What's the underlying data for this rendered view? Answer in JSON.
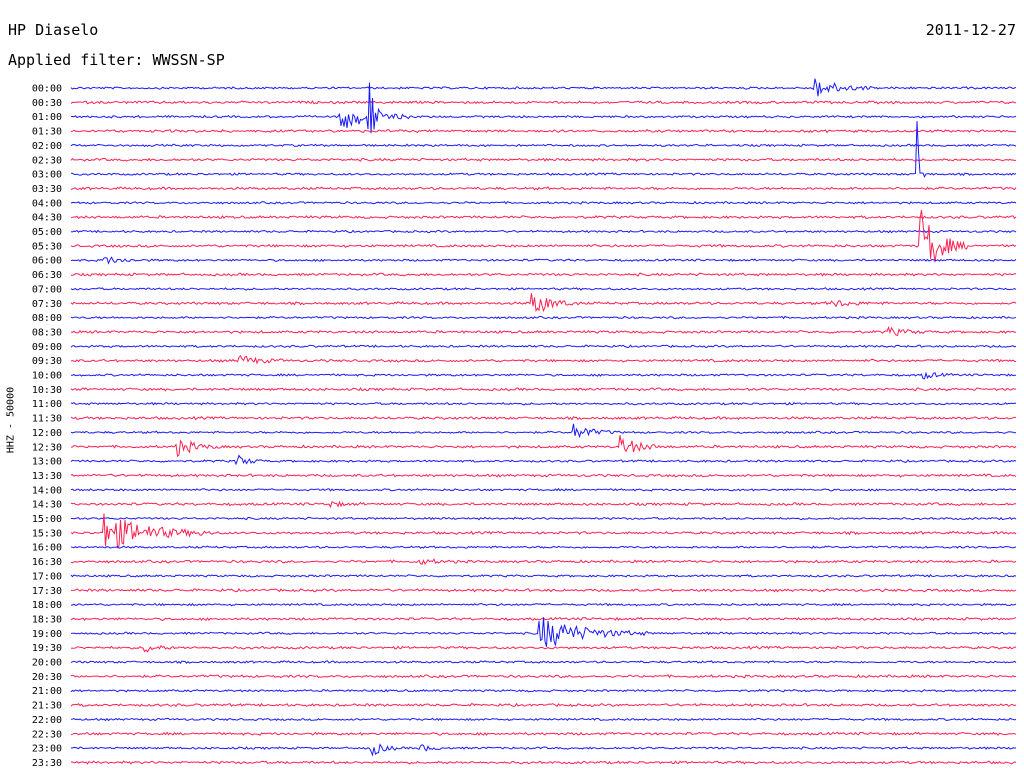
{
  "header": {
    "station": "HP Diaselo",
    "date": "2011-12-27",
    "filter": "Applied filter: WWSSN-SP",
    "channel": "HHZ - 50000"
  },
  "colors": {
    "blue": "#1a1aff",
    "red": "#ff2050"
  },
  "chart_data": {
    "type": "helicorder",
    "title": "HP Diaselo",
    "date": "2011-12-27",
    "filter": "WWSSN-SP",
    "channel": "HHZ - 50000",
    "row_labels": [
      "00:00",
      "00:30",
      "01:00",
      "01:30",
      "02:00",
      "02:30",
      "03:00",
      "03:30",
      "04:00",
      "04:30",
      "05:00",
      "05:30",
      "06:00",
      "06:30",
      "07:00",
      "07:30",
      "08:00",
      "08:30",
      "09:00",
      "09:30",
      "10:00",
      "10:30",
      "11:00",
      "11:30",
      "12:00",
      "12:30",
      "13:00",
      "13:30",
      "14:00",
      "14:30",
      "15:00",
      "15:30",
      "16:00",
      "16:30",
      "17:00",
      "17:30",
      "18:00",
      "18:30",
      "19:00",
      "19:30",
      "20:00",
      "20:30",
      "21:00",
      "21:30",
      "22:00",
      "22:30",
      "23:00",
      "23:30"
    ],
    "row_colors": [
      "blue",
      "red"
    ],
    "minutes_per_row": 30,
    "events": [
      {
        "row": "00:00",
        "minute": 23.5,
        "amplitude": 0.8,
        "duration_min": 2.0,
        "color": "blue"
      },
      {
        "row": "01:00",
        "minute": 8.5,
        "amplitude": 1.0,
        "duration_min": 2.5,
        "color": "blue"
      },
      {
        "row": "01:00",
        "minute": 9.4,
        "amplitude": 4.0,
        "duration_min": 0.4,
        "color": "blue"
      },
      {
        "row": "03:00",
        "minute": 26.8,
        "amplitude": 5.0,
        "duration_min": 0.3,
        "color": "blue"
      },
      {
        "row": "05:30",
        "minute": 26.9,
        "amplitude": 3.0,
        "duration_min": 1.5,
        "color": "red"
      },
      {
        "row": "06:00",
        "minute": 1.0,
        "amplitude": 0.3,
        "duration_min": 1.5,
        "color": "blue"
      },
      {
        "row": "07:30",
        "minute": 14.6,
        "amplitude": 1.0,
        "duration_min": 1.5,
        "color": "red"
      },
      {
        "row": "07:30",
        "minute": 24.1,
        "amplitude": 0.3,
        "duration_min": 1.5,
        "color": "red"
      },
      {
        "row": "08:30",
        "minute": 25.9,
        "amplitude": 0.3,
        "duration_min": 1.5,
        "color": "red"
      },
      {
        "row": "09:30",
        "minute": 5.3,
        "amplitude": 0.4,
        "duration_min": 1.5,
        "color": "red"
      },
      {
        "row": "10:00",
        "minute": 27.0,
        "amplitude": 0.3,
        "duration_min": 1.0,
        "color": "blue"
      },
      {
        "row": "12:00",
        "minute": 15.9,
        "amplitude": 0.6,
        "duration_min": 1.5,
        "color": "blue"
      },
      {
        "row": "12:30",
        "minute": 3.3,
        "amplitude": 0.7,
        "duration_min": 1.5,
        "color": "red"
      },
      {
        "row": "12:30",
        "minute": 17.4,
        "amplitude": 0.8,
        "duration_min": 1.5,
        "color": "red"
      },
      {
        "row": "13:00",
        "minute": 5.2,
        "amplitude": 0.5,
        "duration_min": 1.0,
        "color": "blue"
      },
      {
        "row": "14:30",
        "minute": 8.2,
        "amplitude": 0.2,
        "duration_min": 1.0,
        "color": "red"
      },
      {
        "row": "15:30",
        "minute": 1.0,
        "amplitude": 1.5,
        "duration_min": 3.5,
        "color": "red"
      },
      {
        "row": "16:30",
        "minute": 11.0,
        "amplitude": 0.2,
        "duration_min": 1.5,
        "color": "red"
      },
      {
        "row": "19:00",
        "minute": 14.8,
        "amplitude": 1.3,
        "duration_min": 3.5,
        "color": "blue"
      },
      {
        "row": "19:30",
        "minute": 2.3,
        "amplitude": 0.4,
        "duration_min": 1.0,
        "color": "red"
      },
      {
        "row": "23:00",
        "minute": 9.5,
        "amplitude": 0.6,
        "duration_min": 1.0,
        "color": "blue"
      },
      {
        "row": "23:00",
        "minute": 11.0,
        "amplitude": 0.3,
        "duration_min": 1.0,
        "color": "blue"
      }
    ]
  }
}
